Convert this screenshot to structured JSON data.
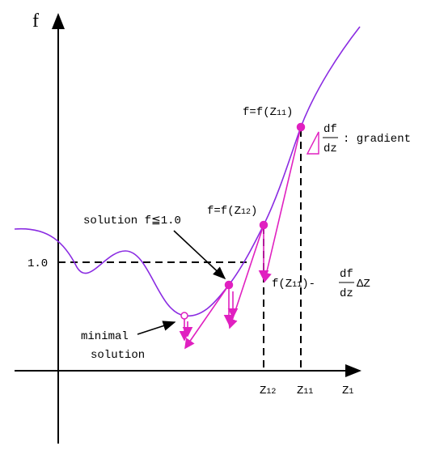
{
  "axes": {
    "y_label": "f",
    "x_label": {
      "base": "Z",
      "sub": "1"
    },
    "level_label": "1.0",
    "x_marks": [
      {
        "base": "Z",
        "sub": "12"
      },
      {
        "base": "Z",
        "sub": "11"
      }
    ]
  },
  "annotations": {
    "point_11": {
      "prefix": "f=f(Z",
      "sub": "11",
      "suffix": ")"
    },
    "point_12": {
      "prefix": "f=f(Z",
      "sub": "12",
      "suffix": ")"
    },
    "gradient": {
      "num": "df",
      "den": "dz",
      "text": ": gradient"
    },
    "solution": "solution f≦1.0",
    "minimal": [
      "minimal",
      "solution"
    ],
    "step": {
      "prefix": "f(Z",
      "sub": "11",
      "suffix": ")-",
      "num": "df",
      "den": "dz",
      "tail": "ΔZ"
    }
  }
}
